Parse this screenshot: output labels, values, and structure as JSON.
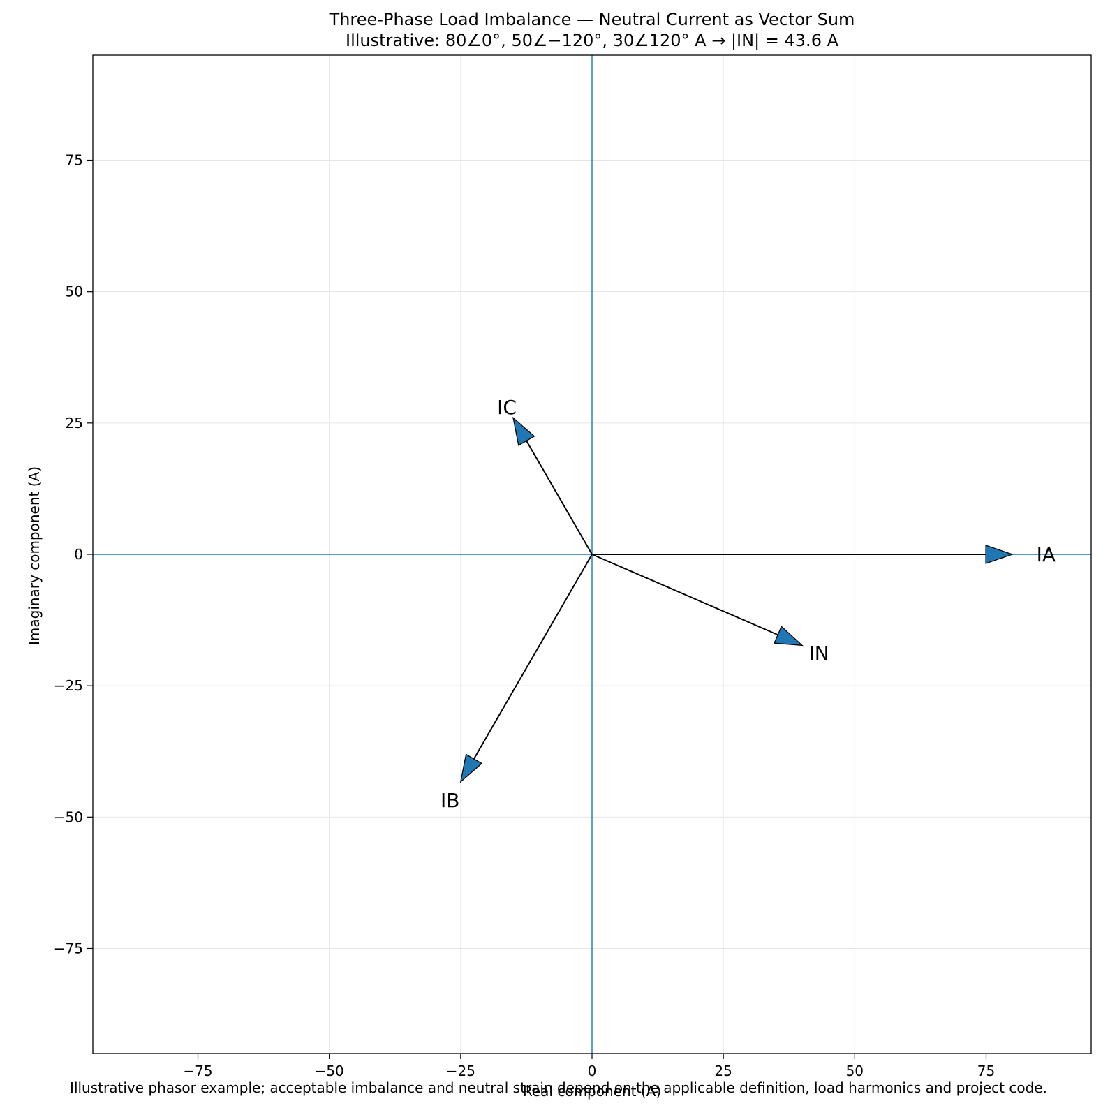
{
  "chart_data": {
    "type": "vector",
    "title": "Three-Phase Load Imbalance — Neutral Current as Vector Sum",
    "subtitle": "Illustrative: 80∠0°, 50∠−120°, 30∠120° A → |IN| = 43.6 A",
    "xlabel": "Real component (A)",
    "ylabel": "Imaginary component (A)",
    "xlim": [
      -95,
      95
    ],
    "ylim": [
      -95,
      95
    ],
    "xticks": [
      -75,
      -50,
      -25,
      0,
      25,
      50,
      75
    ],
    "yticks": [
      -75,
      -50,
      -25,
      0,
      25,
      50,
      75
    ],
    "grid": true,
    "vectors": [
      {
        "name": "IA",
        "x": 80,
        "y": 0
      },
      {
        "name": "IB",
        "x": -25,
        "y": -43.3
      },
      {
        "name": "IC",
        "x": -15,
        "y": 25.98
      },
      {
        "name": "IN",
        "x": 40,
        "y": -17.32
      }
    ],
    "colors": {
      "arrow_fill": "#1f77b4",
      "arrow_edge": "#000000",
      "axis_line": "#1f77b4",
      "grid": "#e6e6e6"
    }
  },
  "footnote": "Illustrative phasor example; acceptable imbalance and neutral strain depend on the applicable definition, load harmonics and project code."
}
